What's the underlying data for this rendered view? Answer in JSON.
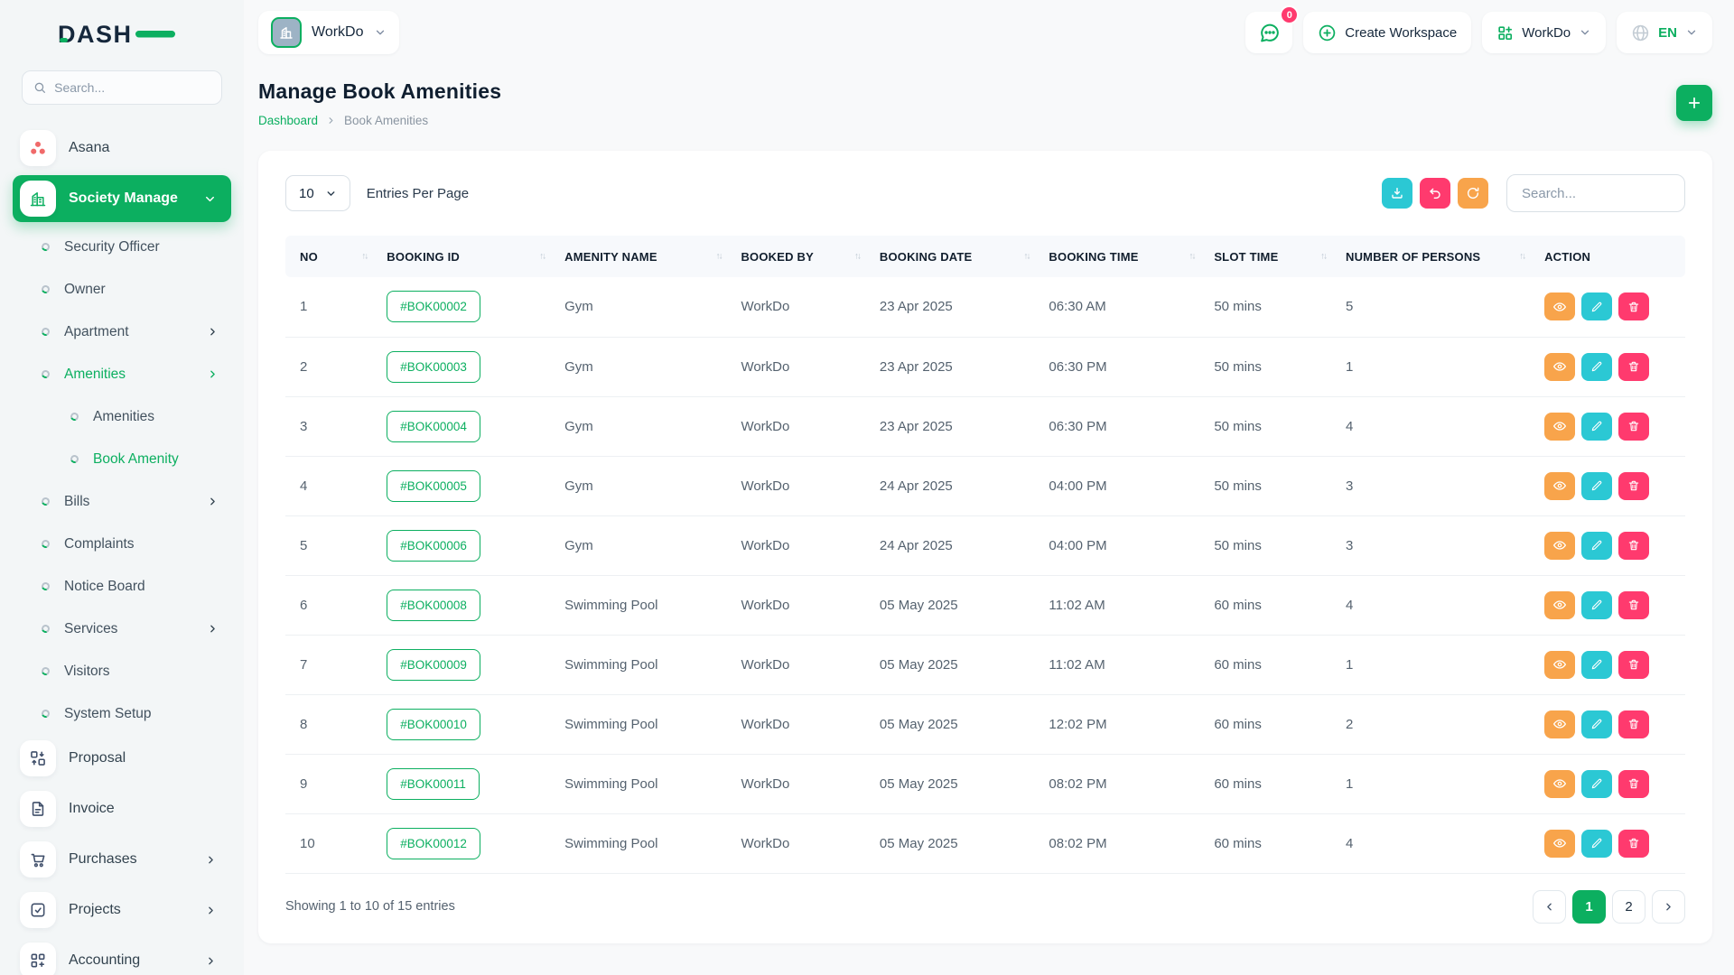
{
  "colors": {
    "primary": "#0caf60",
    "info": "#2bc8d4",
    "warning": "#f8a44b",
    "danger": "#ff3a6e"
  },
  "brand": {
    "logo_text": "DASH"
  },
  "sidebar": {
    "search_placeholder": "Search...",
    "items": [
      {
        "label": "Asana"
      },
      {
        "label": "Society Manage"
      },
      {
        "label": "Security Officer"
      },
      {
        "label": "Owner"
      },
      {
        "label": "Apartment"
      },
      {
        "label": "Amenities"
      },
      {
        "label": "Amenities"
      },
      {
        "label": "Book Amenity"
      },
      {
        "label": "Bills"
      },
      {
        "label": "Complaints"
      },
      {
        "label": "Notice Board"
      },
      {
        "label": "Services"
      },
      {
        "label": "Visitors"
      },
      {
        "label": "System Setup"
      },
      {
        "label": "Proposal"
      },
      {
        "label": "Invoice"
      },
      {
        "label": "Purchases"
      },
      {
        "label": "Projects"
      },
      {
        "label": "Accounting"
      }
    ]
  },
  "header": {
    "workspace_label": "WorkDo",
    "messages_badge": "0",
    "create_workspace_label": "Create Workspace",
    "workspace_switcher_label": "WorkDo",
    "language_label": "EN"
  },
  "page": {
    "title": "Manage Book Amenities",
    "breadcrumb_home": "Dashboard",
    "breadcrumb_current": "Book Amenities"
  },
  "card": {
    "entries_value": "10",
    "entries_label": "Entries Per Page",
    "search_placeholder": "Search..."
  },
  "table": {
    "columns": [
      {
        "label": "NO",
        "sortable": true
      },
      {
        "label": "BOOKING ID",
        "sortable": true
      },
      {
        "label": "AMENITY NAME",
        "sortable": true
      },
      {
        "label": "BOOKED BY",
        "sortable": true
      },
      {
        "label": "BOOKING DATE",
        "sortable": true
      },
      {
        "label": "BOOKING TIME",
        "sortable": true
      },
      {
        "label": "SLOT TIME",
        "sortable": true
      },
      {
        "label": "NUMBER OF PERSONS",
        "sortable": true
      },
      {
        "label": "ACTION",
        "sortable": false
      }
    ],
    "rows": [
      {
        "no": "1",
        "booking_id": "#BOK00002",
        "amenity": "Gym",
        "booked_by": "WorkDo",
        "booking_date": "23 Apr 2025",
        "booking_time": "06:30 AM",
        "slot_time": "50 mins",
        "persons": "5"
      },
      {
        "no": "2",
        "booking_id": "#BOK00003",
        "amenity": "Gym",
        "booked_by": "WorkDo",
        "booking_date": "23 Apr 2025",
        "booking_time": "06:30 PM",
        "slot_time": "50 mins",
        "persons": "1"
      },
      {
        "no": "3",
        "booking_id": "#BOK00004",
        "amenity": "Gym",
        "booked_by": "WorkDo",
        "booking_date": "23 Apr 2025",
        "booking_time": "06:30 PM",
        "slot_time": "50 mins",
        "persons": "4"
      },
      {
        "no": "4",
        "booking_id": "#BOK00005",
        "amenity": "Gym",
        "booked_by": "WorkDo",
        "booking_date": "24 Apr 2025",
        "booking_time": "04:00 PM",
        "slot_time": "50 mins",
        "persons": "3"
      },
      {
        "no": "5",
        "booking_id": "#BOK00006",
        "amenity": "Gym",
        "booked_by": "WorkDo",
        "booking_date": "24 Apr 2025",
        "booking_time": "04:00 PM",
        "slot_time": "50 mins",
        "persons": "3"
      },
      {
        "no": "6",
        "booking_id": "#BOK00008",
        "amenity": "Swimming Pool",
        "booked_by": "WorkDo",
        "booking_date": "05 May 2025",
        "booking_time": "11:02 AM",
        "slot_time": "60 mins",
        "persons": "4"
      },
      {
        "no": "7",
        "booking_id": "#BOK00009",
        "amenity": "Swimming Pool",
        "booked_by": "WorkDo",
        "booking_date": "05 May 2025",
        "booking_time": "11:02 AM",
        "slot_time": "60 mins",
        "persons": "1"
      },
      {
        "no": "8",
        "booking_id": "#BOK00010",
        "amenity": "Swimming Pool",
        "booked_by": "WorkDo",
        "booking_date": "05 May 2025",
        "booking_time": "12:02 PM",
        "slot_time": "60 mins",
        "persons": "2"
      },
      {
        "no": "9",
        "booking_id": "#BOK00011",
        "amenity": "Swimming Pool",
        "booked_by": "WorkDo",
        "booking_date": "05 May 2025",
        "booking_time": "08:02 PM",
        "slot_time": "60 mins",
        "persons": "1"
      },
      {
        "no": "10",
        "booking_id": "#BOK00012",
        "amenity": "Swimming Pool",
        "booked_by": "WorkDo",
        "booking_date": "05 May 2025",
        "booking_time": "08:02 PM",
        "slot_time": "60 mins",
        "persons": "4"
      }
    ],
    "footer": {
      "showing_text": "Showing 1 to 10 of 15 entries",
      "pages": [
        "1",
        "2"
      ],
      "active_page": "1"
    }
  }
}
